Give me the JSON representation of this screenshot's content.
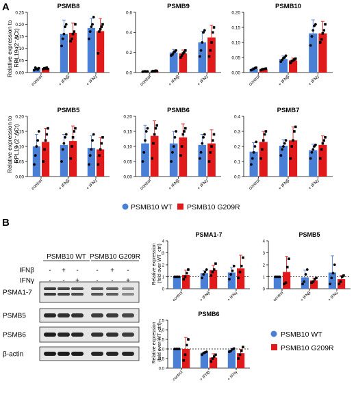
{
  "panels": [
    {
      "letter": "A"
    },
    {
      "letter": "B"
    }
  ],
  "colors": {
    "wt": "#4a7fd6",
    "mut": "#e01a1a",
    "wt_dot": "#1f4fb8",
    "mut_dot": "#8a0a0a"
  },
  "legend_a": [
    {
      "label": "PSMB10 WT",
      "color": "#4a7fd6"
    },
    {
      "label": "PSMB10 G209R",
      "color": "#e01a1a"
    }
  ],
  "legend_b": [
    {
      "label": "PSMB10 WT",
      "color": "#4a7fd6"
    },
    {
      "label": "PSMB10 G209R",
      "color": "#e01a1a"
    }
  ],
  "ylabel_a_lines": [
    "Relative expression to",
    "RPL19 (2⁻ΔCt)"
  ],
  "ylabel_b_lines": [
    "Relative expression",
    "(fold over WT_ctrl)"
  ],
  "blot": {
    "groups": [
      "PSMB10 WT",
      "PSMB10 G209R"
    ],
    "treatments": [
      {
        "name": "IFNβ",
        "marks": [
          "-",
          "+",
          "-",
          "-",
          "+",
          "-"
        ]
      },
      {
        "name": "IFNγ",
        "marks": [
          "-",
          "-",
          "+",
          "-",
          "-",
          "+"
        ]
      }
    ],
    "bands": [
      "PSMA1-7",
      "PSMB5",
      "PSMB6",
      "β-actin"
    ]
  },
  "chart_data": [
    {
      "type": "bar",
      "title": "PSMB8",
      "categories": [
        "control",
        "+ IFNβ",
        "+ IFNγ"
      ],
      "ylim": [
        0,
        0.25
      ],
      "yticks": [
        "0.00",
        "0.05",
        "0.10",
        "0.15",
        "0.20",
        "0.25"
      ],
      "ylabel": "Relative expression to RPL19 (2⁻ΔCt)",
      "dashed_line": null,
      "series": [
        {
          "name": "PSMB10 WT",
          "values": [
            0.015,
            0.16,
            0.185
          ],
          "err": [
            0.005,
            0.058,
            0.04
          ],
          "points": [
            [
              0.01,
              0.02,
              0.015,
              0.012,
              0.018
            ],
            [
              0.11,
              0.14,
              0.16,
              0.19,
              0.2
            ],
            [
              0.14,
              0.17,
              0.19,
              0.2,
              0.23
            ]
          ]
        },
        {
          "name": "PSMB10 G209R",
          "values": [
            0.017,
            0.165,
            0.172
          ],
          "err": [
            0.005,
            0.04,
            0.052
          ],
          "points": [
            [
              0.014,
              0.018,
              0.016,
              0.02,
              0.015
            ],
            [
              0.13,
              0.14,
              0.16,
              0.17,
              0.2
            ],
            [
              0.08,
              0.17,
              0.18,
              0.19,
              0.2
            ]
          ]
        }
      ]
    },
    {
      "type": "bar",
      "title": "PSMB9",
      "categories": [
        "control",
        "+ IFNβ",
        "+ IFNγ"
      ],
      "ylim": [
        0,
        0.6
      ],
      "yticks": [
        "0.0",
        "0.2",
        "0.4",
        "0.6"
      ],
      "ylabel": "",
      "dashed_line": null,
      "series": [
        {
          "name": "PSMB10 WT",
          "values": [
            0.01,
            0.2,
            0.3
          ],
          "err": [
            0.005,
            0.03,
            0.11
          ],
          "points": [
            [
              0.008,
              0.01,
              0.012,
              0.009,
              0.011
            ],
            [
              0.17,
              0.18,
              0.2,
              0.21,
              0.22
            ],
            [
              0.16,
              0.22,
              0.3,
              0.4,
              0.42
            ]
          ]
        },
        {
          "name": "PSMB10 G209R",
          "values": [
            0.015,
            0.19,
            0.35
          ],
          "err": [
            0.005,
            0.035,
            0.12
          ],
          "points": [
            [
              0.01,
              0.015,
              0.013,
              0.018,
              0.016
            ],
            [
              0.15,
              0.17,
              0.19,
              0.2,
              0.22
            ],
            [
              0.16,
              0.22,
              0.3,
              0.4,
              0.45
            ]
          ]
        }
      ]
    },
    {
      "type": "bar",
      "title": "PSMB10",
      "categories": [
        "control",
        "+ IFNβ",
        "+ IFNγ"
      ],
      "ylim": [
        0,
        0.2
      ],
      "yticks": [
        "0.00",
        "0.05",
        "0.10",
        "0.15",
        "0.20"
      ],
      "ylabel": "",
      "dashed_line": null,
      "series": [
        {
          "name": "PSMB10 WT",
          "values": [
            0.012,
            0.045,
            0.13
          ],
          "err": [
            0.004,
            0.01,
            0.045
          ],
          "points": [
            [
              0.008,
              0.01,
              0.012,
              0.015,
              0.016
            ],
            [
              0.036,
              0.042,
              0.048,
              0.05,
              0.056
            ],
            [
              0.09,
              0.12,
              0.14,
              0.155,
              0.16
            ]
          ]
        },
        {
          "name": "PSMB10 G209R",
          "values": [
            0.01,
            0.04,
            0.13
          ],
          "err": [
            0.003,
            0.008,
            0.04
          ],
          "points": [
            [
              0.008,
              0.01,
              0.011,
              0.012,
              0.013
            ],
            [
              0.032,
              0.038,
              0.04,
              0.043,
              0.046
            ],
            [
              0.1,
              0.11,
              0.13,
              0.14,
              0.16
            ]
          ]
        }
      ]
    },
    {
      "type": "bar",
      "title": "PSMB5",
      "categories": [
        "control",
        "+ IFNβ",
        "+ IFNγ"
      ],
      "ylim": [
        0,
        0.2
      ],
      "yticks": [
        "0.00",
        "0.05",
        "0.10",
        "0.15",
        "0.20"
      ],
      "ylabel": "Relative expression to RPL19 (2⁻ΔCt)",
      "dashed_line": null,
      "series": [
        {
          "name": "PSMB10 WT",
          "values": [
            0.1,
            0.105,
            0.095
          ],
          "err": [
            0.04,
            0.035,
            0.04
          ],
          "points": [
            [
              0.04,
              0.07,
              0.1,
              0.12,
              0.15
            ],
            [
              0.05,
              0.09,
              0.11,
              0.13,
              0.14
            ],
            [
              0.04,
              0.07,
              0.09,
              0.12,
              0.14
            ]
          ]
        },
        {
          "name": "PSMB10 G209R",
          "values": [
            0.115,
            0.118,
            0.09
          ],
          "err": [
            0.045,
            0.05,
            0.04
          ],
          "points": [
            [
              0.05,
              0.09,
              0.12,
              0.14,
              0.16
            ],
            [
              0.06,
              0.1,
              0.13,
              0.15,
              0.16
            ],
            [
              0.04,
              0.07,
              0.09,
              0.11,
              0.13
            ]
          ]
        }
      ]
    },
    {
      "type": "bar",
      "title": "PSMB6",
      "categories": [
        "control",
        "+ IFNβ",
        "+ IFNγ"
      ],
      "ylim": [
        0,
        0.2
      ],
      "yticks": [
        "0.00",
        "0.05",
        "0.10",
        "0.15",
        "0.20"
      ],
      "ylabel": "",
      "dashed_line": null,
      "series": [
        {
          "name": "PSMB10 WT",
          "values": [
            0.11,
            0.11,
            0.105
          ],
          "err": [
            0.06,
            0.04,
            0.035
          ],
          "points": [
            [
              0.05,
              0.08,
              0.12,
              0.15,
              0.16
            ],
            [
              0.05,
              0.08,
              0.1,
              0.13,
              0.15
            ],
            [
              0.06,
              0.08,
              0.11,
              0.13,
              0.14
            ]
          ]
        },
        {
          "name": "PSMB10 G209R",
          "values": [
            0.135,
            0.13,
            0.11
          ],
          "err": [
            0.05,
            0.045,
            0.045
          ],
          "points": [
            [
              0.06,
              0.11,
              0.14,
              0.16,
              0.17
            ],
            [
              0.07,
              0.1,
              0.14,
              0.15,
              0.16
            ],
            [
              0.05,
              0.08,
              0.1,
              0.12,
              0.14
            ]
          ]
        }
      ]
    },
    {
      "type": "bar",
      "title": "PSMB7",
      "categories": [
        "control",
        "+ IFNβ",
        "+ IFNγ"
      ],
      "ylim": [
        0,
        0.4
      ],
      "yticks": [
        "0.0",
        "0.1",
        "0.2",
        "0.3",
        "0.4"
      ],
      "ylabel": "",
      "dashed_line": null,
      "series": [
        {
          "name": "PSMB10 WT",
          "values": [
            0.165,
            0.205,
            0.175
          ],
          "err": [
            0.06,
            0.04,
            0.04
          ],
          "points": [
            [
              0.08,
              0.12,
              0.16,
              0.2,
              0.23
            ],
            [
              0.14,
              0.18,
              0.2,
              0.22,
              0.24
            ],
            [
              0.12,
              0.16,
              0.18,
              0.2,
              0.21
            ]
          ]
        },
        {
          "name": "PSMB10 G209R",
          "values": [
            0.23,
            0.24,
            0.21
          ],
          "err": [
            0.07,
            0.09,
            0.06
          ],
          "points": [
            [
              0.12,
              0.18,
              0.24,
              0.28,
              0.3
            ],
            [
              0.12,
              0.2,
              0.24,
              0.3,
              0.33
            ],
            [
              0.12,
              0.18,
              0.22,
              0.24,
              0.26
            ]
          ]
        }
      ]
    },
    {
      "type": "bar",
      "title": "PSMA1-7",
      "categories": [
        "control",
        "+ IFNβ",
        "+ IFNγ"
      ],
      "ylim": [
        0,
        4
      ],
      "yticks": [
        "0",
        "1",
        "2",
        "3",
        "4"
      ],
      "ylabel": "Relative expression (fold over WT_ctrl)",
      "dashed_line": 1,
      "series": [
        {
          "name": "PSMB10 WT",
          "values": [
            1,
            1.3,
            1.35
          ],
          "err": [
            0.02,
            0.2,
            0.4
          ],
          "points": [
            [
              1,
              1,
              1,
              1
            ],
            [
              0.9,
              1.2,
              1.4,
              1.6
            ],
            [
              0.8,
              1.2,
              1.5,
              1.9
            ]
          ]
        },
        {
          "name": "PSMB10 G209R",
          "values": [
            1.15,
            1.55,
            1.7
          ],
          "err": [
            0.4,
            0.4,
            1.1
          ],
          "points": [
            [
              0.8,
              1,
              1.3,
              1.6
            ],
            [
              1.1,
              1.4,
              1.6,
              2.1
            ],
            [
              0.9,
              1.4,
              1.9,
              2.6
            ]
          ]
        }
      ]
    },
    {
      "type": "bar",
      "title": "PSMB5",
      "categories": [
        "control",
        "+ IFNβ",
        "+ IFNγ"
      ],
      "ylim": [
        0,
        4
      ],
      "yticks": [
        "0",
        "1",
        "2",
        "3",
        "4"
      ],
      "ylabel": "",
      "dashed_line": 1,
      "series": [
        {
          "name": "PSMB10 WT",
          "values": [
            1,
            0.95,
            1.35
          ],
          "err": [
            0.02,
            0.6,
            1.4
          ],
          "points": [
            [
              1,
              1,
              1,
              1
            ],
            [
              0.4,
              0.6,
              1.2,
              1.6
            ],
            [
              0.4,
              0.9,
              1.3,
              2
            ]
          ]
        },
        {
          "name": "PSMB10 G209R",
          "values": [
            1.4,
            0.7,
            0.8
          ],
          "err": [
            1.3,
            0.2,
            0.3
          ],
          "points": [
            [
              0.4,
              0.5,
              1.8,
              2.5
            ],
            [
              0.5,
              0.6,
              0.8,
              0.9
            ],
            [
              0.4,
              0.6,
              1,
              1.1
            ]
          ]
        }
      ]
    },
    {
      "type": "bar",
      "title": "PSMB6",
      "categories": [
        "control",
        "+ IFNβ",
        "+ IFNγ"
      ],
      "ylim": [
        0,
        2.5
      ],
      "yticks": [
        "0.0",
        "0.5",
        "1.0",
        "1.5",
        "2.0",
        "2.5"
      ],
      "ylabel": "Relative expression (fold over WT_ctrl)",
      "dashed_line": 1,
      "series": [
        {
          "name": "PSMB10 WT",
          "values": [
            1,
            0.8,
            0.95
          ],
          "err": [
            0.01,
            0.05,
            0.08
          ],
          "points": [
            [
              1,
              1,
              1,
              1
            ],
            [
              0.7,
              0.78,
              0.82,
              0.85
            ],
            [
              0.85,
              0.9,
              0.98,
              1.02
            ]
          ]
        },
        {
          "name": "PSMB10 G209R",
          "values": [
            1,
            0.55,
            0.78
          ],
          "err": [
            0.6,
            0.2,
            0.2
          ],
          "points": [
            [
              0.4,
              0.7,
              1.2,
              1.5
            ],
            [
              0.35,
              0.5,
              0.6,
              0.7
            ],
            [
              0.5,
              0.7,
              0.9,
              1.1
            ]
          ]
        }
      ]
    }
  ]
}
